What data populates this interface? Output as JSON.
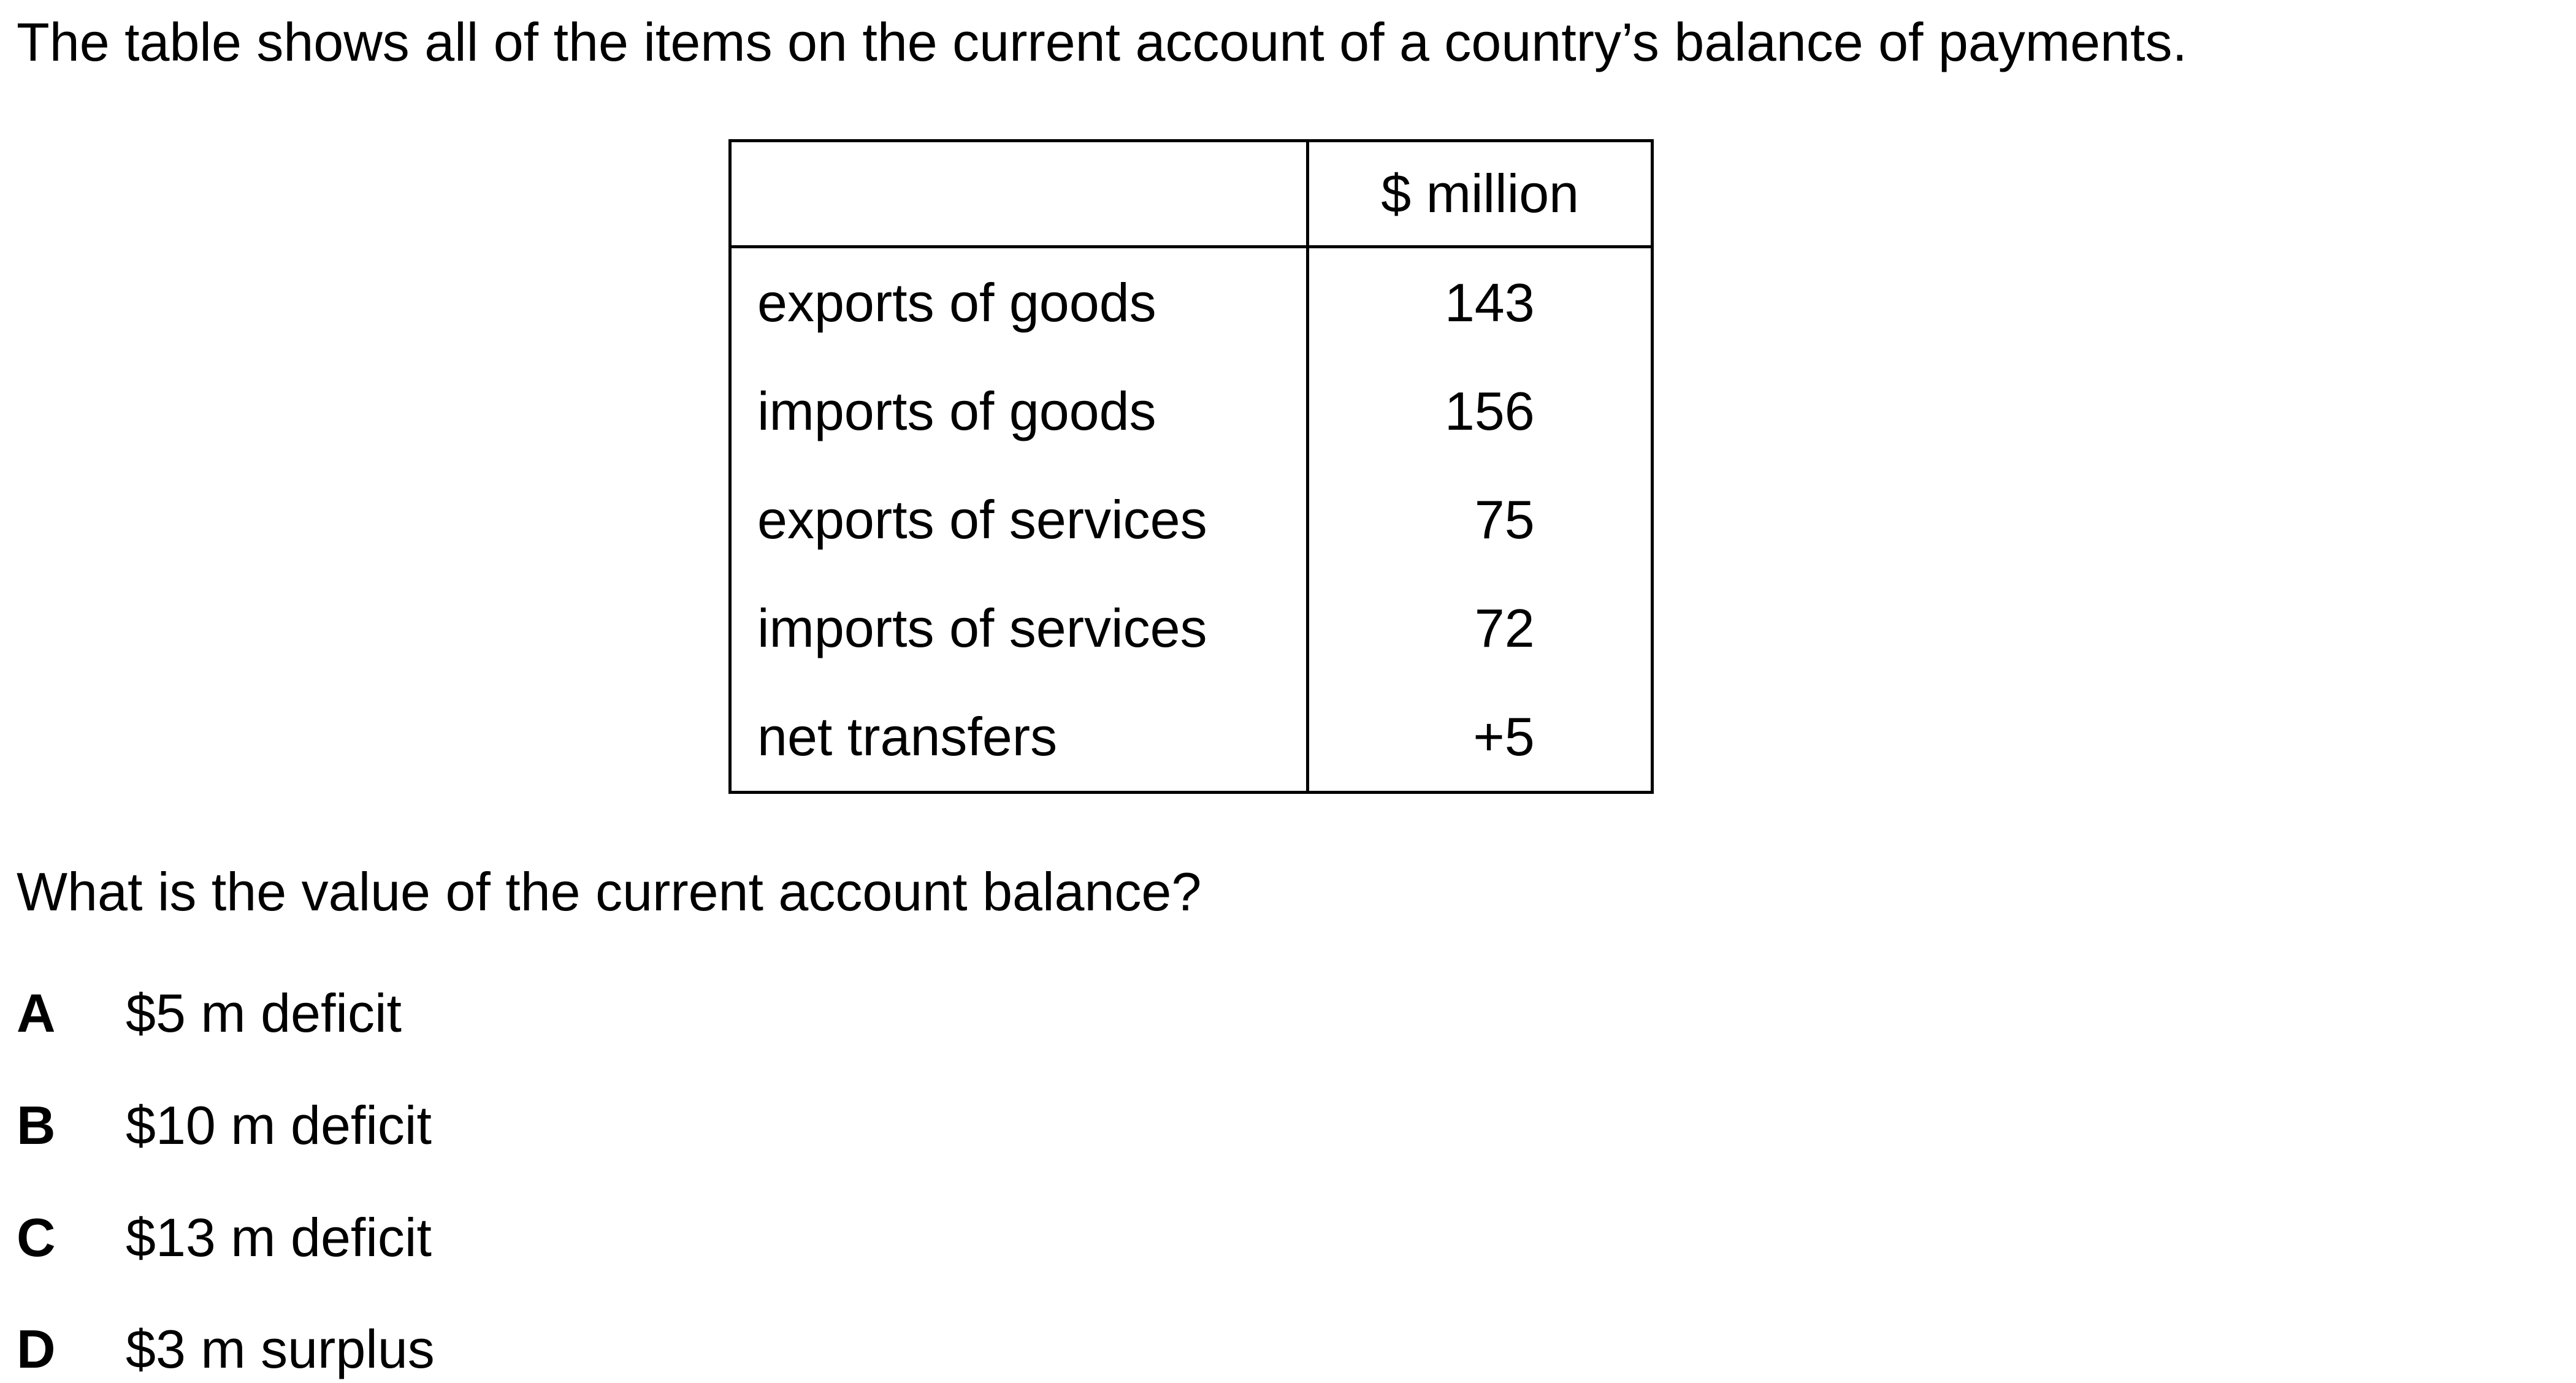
{
  "intro": "The table shows all of the items on the current account of a country’s balance of payments.",
  "table": {
    "header_item": "",
    "header_value": "$ million",
    "rows": [
      {
        "item": "exports of goods",
        "value": "143"
      },
      {
        "item": "imports of goods",
        "value": "156"
      },
      {
        "item": "exports of services",
        "value": "75"
      },
      {
        "item": "imports of services",
        "value": "72"
      },
      {
        "item": "net transfers",
        "value": "+5"
      }
    ]
  },
  "question": "What is the value of the current account balance?",
  "options": [
    {
      "letter": "A",
      "text": "$5 m deficit"
    },
    {
      "letter": "B",
      "text": "$10 m deficit"
    },
    {
      "letter": "C",
      "text": "$13 m deficit"
    },
    {
      "letter": "D",
      "text": "$3 m surplus"
    }
  ]
}
